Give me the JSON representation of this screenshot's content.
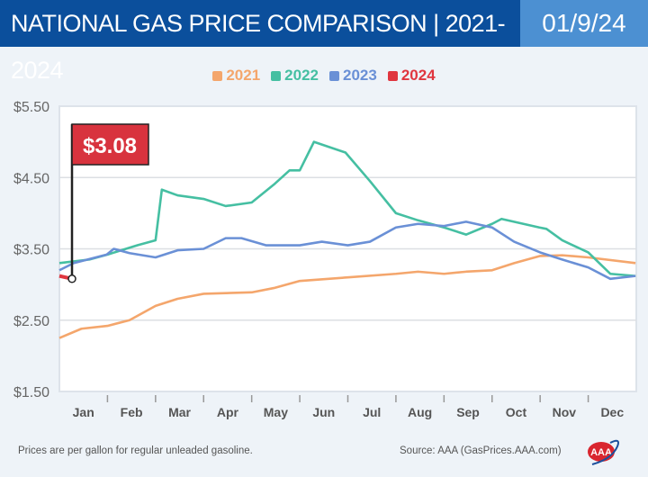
{
  "header": {
    "title": "NATIONAL GAS PRICE COMPARISON | 2021-2024",
    "date": "01/9/24"
  },
  "footer": {
    "note": "Prices are per gallon for regular unleaded gasoline.",
    "source": "Source: AAA (GasPrices.AAA.com)",
    "logo": "AAA"
  },
  "chart_data": {
    "type": "line",
    "title": "NATIONAL GAS PRICE COMPARISON | 2021-2024",
    "xlabel": "",
    "ylabel": "",
    "ylim": [
      1.5,
      5.5
    ],
    "yticks": [
      "$1.50",
      "$2.50",
      "$3.50",
      "$4.50",
      "$5.50"
    ],
    "xticks": [
      "Jan",
      "Feb",
      "Mar",
      "Apr",
      "May",
      "Jun",
      "Jul",
      "Aug",
      "Sep",
      "Oct",
      "Nov",
      "Dec"
    ],
    "grid": true,
    "legend": "top",
    "annotation": {
      "label": "$3.08",
      "x": "01-09",
      "y": 3.08,
      "series": "2024"
    },
    "series": [
      {
        "name": "2021",
        "color": "#f4a66c",
        "x": [
          "01-01",
          "01-15",
          "02-01",
          "02-15",
          "03-01",
          "03-15",
          "04-01",
          "05-01",
          "05-15",
          "06-01",
          "07-01",
          "08-01",
          "08-15",
          "09-01",
          "09-15",
          "10-01",
          "10-15",
          "11-01",
          "11-15",
          "12-01",
          "12-31"
        ],
        "values": [
          2.25,
          2.38,
          2.42,
          2.5,
          2.7,
          2.8,
          2.87,
          2.89,
          2.95,
          3.05,
          3.1,
          3.15,
          3.18,
          3.15,
          3.18,
          3.2,
          3.3,
          3.4,
          3.41,
          3.38,
          3.3
        ]
      },
      {
        "name": "2022",
        "color": "#45bfa2",
        "x": [
          "01-01",
          "01-20",
          "02-01",
          "02-20",
          "03-01",
          "03-05",
          "03-15",
          "04-01",
          "04-15",
          "05-01",
          "05-15",
          "05-25",
          "06-01",
          "06-10",
          "06-30",
          "07-15",
          "08-01",
          "08-15",
          "09-01",
          "09-15",
          "10-01",
          "10-07",
          "10-31",
          "11-05",
          "11-15",
          "12-01",
          "12-15",
          "12-31"
        ],
        "values": [
          3.3,
          3.35,
          3.42,
          3.55,
          3.62,
          4.33,
          4.25,
          4.2,
          4.1,
          4.15,
          4.4,
          4.6,
          4.6,
          5.0,
          4.85,
          4.45,
          4.0,
          3.9,
          3.8,
          3.7,
          3.85,
          3.92,
          3.8,
          3.78,
          3.62,
          3.45,
          3.15,
          3.12
        ]
      },
      {
        "name": "2023",
        "color": "#6a90d6",
        "x": [
          "01-01",
          "01-10",
          "01-31",
          "02-05",
          "02-15",
          "03-01",
          "03-15",
          "04-01",
          "04-15",
          "04-25",
          "05-10",
          "06-01",
          "06-15",
          "07-01",
          "07-15",
          "08-01",
          "08-15",
          "09-01",
          "09-15",
          "10-01",
          "10-15",
          "11-01",
          "11-15",
          "12-01",
          "12-15",
          "12-31"
        ],
        "values": [
          3.2,
          3.3,
          3.42,
          3.5,
          3.44,
          3.38,
          3.48,
          3.5,
          3.65,
          3.65,
          3.55,
          3.55,
          3.6,
          3.55,
          3.6,
          3.8,
          3.85,
          3.82,
          3.88,
          3.8,
          3.6,
          3.45,
          3.35,
          3.24,
          3.08,
          3.12
        ]
      },
      {
        "name": "2024",
        "color": "#e0363f",
        "x": [
          "01-01",
          "01-09"
        ],
        "values": [
          3.12,
          3.08
        ]
      }
    ]
  }
}
